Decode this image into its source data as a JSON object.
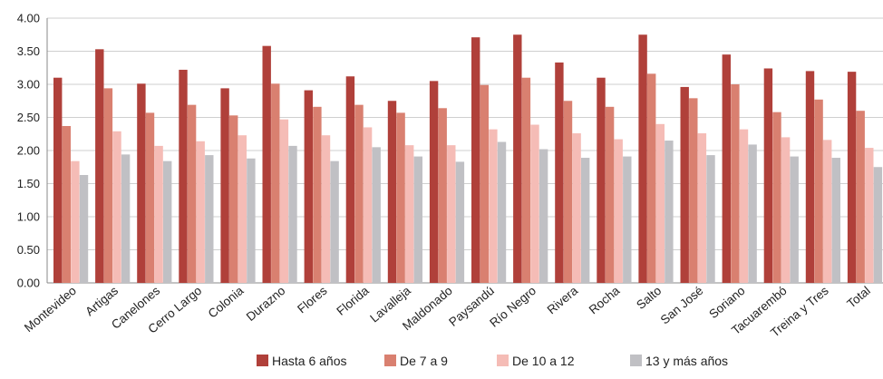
{
  "chart_data": {
    "type": "bar",
    "title": "",
    "xlabel": "",
    "ylabel": "",
    "ylim": [
      0,
      4
    ],
    "yticks": [
      "0.00",
      "0.50",
      "1.00",
      "1.50",
      "2.00",
      "2.50",
      "3.00",
      "3.50",
      "4.00"
    ],
    "grid": true,
    "legend_position": "bottom",
    "categories": [
      "Montevideo",
      "Artigas",
      "Canelones",
      "Cerro Largo",
      "Colonia",
      "Durazno",
      "Flores",
      "Florida",
      "Lavalleja",
      "Maldonado",
      "Paysandú",
      "Río Negro",
      "Rivera",
      "Rocha",
      "Salto",
      "San José",
      "Soriano",
      "Tacuarembó",
      "Treina y Tres",
      "Total"
    ],
    "series": [
      {
        "name": "Hasta 6 años",
        "color": "#b0403a",
        "values": [
          3.1,
          3.53,
          3.01,
          3.22,
          2.94,
          3.58,
          2.91,
          3.12,
          2.75,
          3.05,
          3.71,
          3.75,
          3.33,
          3.1,
          3.75,
          2.96,
          3.45,
          3.24,
          3.2,
          3.19
        ]
      },
      {
        "name": "De 7 a 9",
        "color": "#d98070",
        "values": [
          2.37,
          2.94,
          2.57,
          2.69,
          2.53,
          3.01,
          2.66,
          2.69,
          2.57,
          2.64,
          2.99,
          3.1,
          2.75,
          2.66,
          3.16,
          2.79,
          3.0,
          2.58,
          2.77,
          2.6
        ]
      },
      {
        "name": "De 10 a 12",
        "color": "#f5bcb6",
        "values": [
          1.84,
          2.29,
          2.07,
          2.14,
          2.23,
          2.47,
          2.23,
          2.35,
          2.08,
          2.08,
          2.32,
          2.39,
          2.26,
          2.17,
          2.4,
          2.26,
          2.32,
          2.2,
          2.16,
          2.04
        ]
      },
      {
        "name": "13 y más años",
        "color": "#c0c0c4",
        "values": [
          1.63,
          1.94,
          1.84,
          1.93,
          1.88,
          2.07,
          1.84,
          2.05,
          1.91,
          1.83,
          2.13,
          2.02,
          1.89,
          1.91,
          2.15,
          1.93,
          2.09,
          1.91,
          1.89,
          1.75
        ]
      }
    ]
  }
}
